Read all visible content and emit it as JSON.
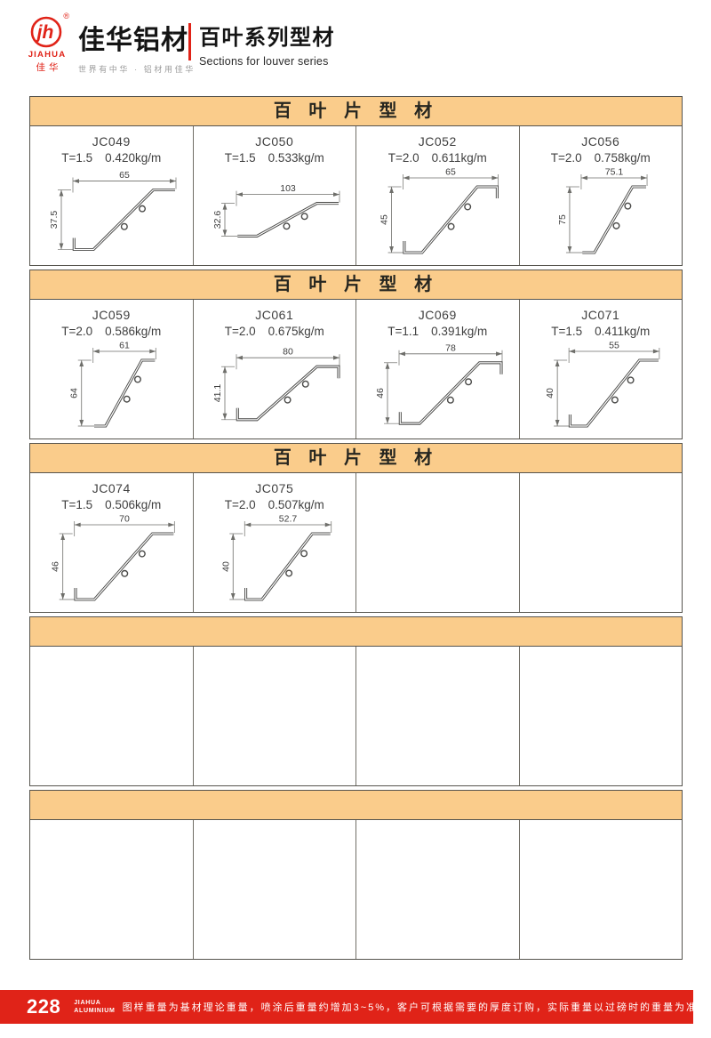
{
  "header": {
    "brand_mark": "jh",
    "registered": "®",
    "brand_en": "JIAHUA",
    "brand_cn": "佳华",
    "company_name": "佳华铝材",
    "slogan": "世界有中华 · 铝材用佳华",
    "series_title_cn": "百叶系列型材",
    "series_title_en": "Sections for louver series"
  },
  "table": {
    "sections": [
      {
        "title": "百 叶 片 型 材",
        "cells": [
          {
            "code": "JC049",
            "thickness": "T=1.5",
            "weight": "0.420kg/m",
            "width_label": "65",
            "height_label": "37.5",
            "left_hook": true,
            "right_hook": false
          },
          {
            "code": "JC050",
            "thickness": "T=1.5",
            "weight": "0.533kg/m",
            "width_label": "103",
            "height_label": "32.6",
            "left_hook": false,
            "right_hook": false
          },
          {
            "code": "JC052",
            "thickness": "T=2.0",
            "weight": "0.611kg/m",
            "width_label": "65",
            "height_label": "45",
            "left_hook": true,
            "right_hook": true
          },
          {
            "code": "JC056",
            "thickness": "T=2.0",
            "weight": "0.758kg/m",
            "width_label": "75.1",
            "height_label": "75",
            "left_hook": false,
            "right_hook": false
          }
        ]
      },
      {
        "title": "百 叶 片 型 材",
        "cells": [
          {
            "code": "JC059",
            "thickness": "T=2.0",
            "weight": "0.586kg/m",
            "width_label": "61",
            "height_label": "64",
            "left_hook": false,
            "right_hook": false
          },
          {
            "code": "JC061",
            "thickness": "T=2.0",
            "weight": "0.675kg/m",
            "width_label": "80",
            "height_label": "41.1",
            "left_hook": true,
            "right_hook": true
          },
          {
            "code": "JC069",
            "thickness": "T=1.1",
            "weight": "0.391kg/m",
            "width_label": "78",
            "height_label": "46",
            "left_hook": true,
            "right_hook": true
          },
          {
            "code": "JC071",
            "thickness": "T=1.5",
            "weight": "0.411kg/m",
            "width_label": "55",
            "height_label": "40",
            "left_hook": true,
            "right_hook": false
          }
        ]
      },
      {
        "title": "百 叶 片 型 材",
        "cells": [
          {
            "code": "JC074",
            "thickness": "T=1.5",
            "weight": "0.506kg/m",
            "width_label": "70",
            "height_label": "46",
            "left_hook": true,
            "right_hook": false
          },
          {
            "code": "JC075",
            "thickness": "T=2.0",
            "weight": "0.507kg/m",
            "width_label": "52.7",
            "height_label": "40",
            "left_hook": true,
            "right_hook": false
          },
          null,
          null
        ]
      },
      {
        "title": "",
        "cells": [
          null,
          null,
          null,
          null
        ]
      },
      {
        "title": "",
        "cells": [
          null,
          null,
          null,
          null
        ]
      }
    ]
  },
  "footer": {
    "page_number": "228",
    "brand_top": "JIAHUA",
    "brand_bottom": "ALUMINIUM",
    "note": "图样重量为基材理论重量，喷涂后重量约增加3~5%，客户可根据需要的厚度订购，实际重量以过磅时的重量为准。"
  },
  "colors": {
    "accent_red": "#e02318",
    "band_orange": "#facc8b",
    "drawing_line": "#4a4a48",
    "table_border": "#56544e"
  }
}
